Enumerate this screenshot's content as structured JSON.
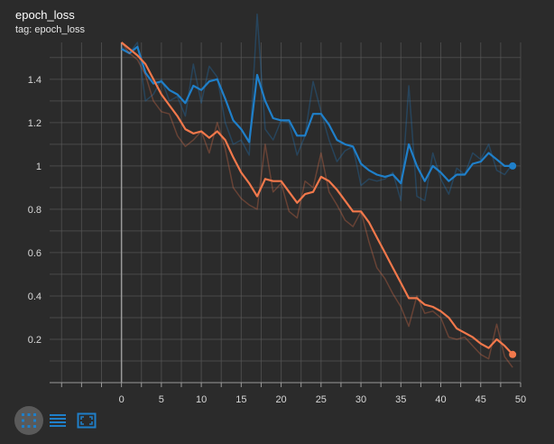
{
  "card": {
    "title": "epoch_loss",
    "subtitle": "tag: epoch_loss"
  },
  "toolbar": {
    "buttons": [
      {
        "name": "fit-domain",
        "icon": "fit-to-data-icon",
        "active": true
      },
      {
        "name": "toggle-y-log",
        "icon": "log-scale-icon",
        "active": false
      },
      {
        "name": "expand",
        "icon": "fullscreen-icon",
        "active": false
      }
    ]
  },
  "colors": {
    "background": "#2b2b2b",
    "grid": "#555555",
    "series_blue": "#1f7fc9",
    "series_orange": "#f2784b"
  },
  "chart_data": {
    "type": "line",
    "xlim": [
      -9,
      50
    ],
    "ylim": [
      0.0,
      1.57
    ],
    "x_ticks": [
      "0",
      "5",
      "10",
      "15",
      "20",
      "25",
      "30",
      "35",
      "40",
      "45",
      "50"
    ],
    "y_ticks": [
      "0.2",
      "0.4",
      "0.6",
      "0.8",
      "1",
      "1.2",
      "1.4"
    ],
    "series": [
      {
        "color": "#1f7fc9",
        "x": [
          0,
          1,
          2,
          3,
          4,
          5,
          6,
          7,
          8,
          9,
          10,
          11,
          12,
          13,
          14,
          15,
          16,
          17,
          18,
          19,
          20,
          21,
          22,
          23,
          24,
          25,
          26,
          27,
          28,
          29,
          30,
          31,
          32,
          33,
          34,
          35,
          36,
          37,
          38,
          39,
          40,
          41,
          42,
          43,
          44,
          45,
          46,
          47,
          48,
          49
        ],
        "y": [
          1.54,
          1.52,
          1.55,
          1.43,
          1.38,
          1.39,
          1.35,
          1.33,
          1.29,
          1.37,
          1.35,
          1.39,
          1.4,
          1.31,
          1.21,
          1.17,
          1.11,
          1.42,
          1.3,
          1.22,
          1.21,
          1.21,
          1.14,
          1.14,
          1.24,
          1.24,
          1.19,
          1.12,
          1.1,
          1.09,
          1.01,
          0.98,
          0.96,
          0.95,
          0.96,
          0.92,
          1.1,
          1.0,
          0.93,
          1.0,
          0.97,
          0.93,
          0.96,
          0.96,
          1.01,
          1.02,
          1.06,
          1.03,
          1.0,
          1.0
        ],
        "raw": [
          1.55,
          1.52,
          1.57,
          1.3,
          1.33,
          1.4,
          1.3,
          1.32,
          1.23,
          1.47,
          1.29,
          1.46,
          1.41,
          1.2,
          1.1,
          1.12,
          1.05,
          1.7,
          1.17,
          1.12,
          1.21,
          1.2,
          1.05,
          1.14,
          1.39,
          1.25,
          1.12,
          1.02,
          1.07,
          1.09,
          0.91,
          0.94,
          0.93,
          0.94,
          0.97,
          0.84,
          1.37,
          0.86,
          0.84,
          1.06,
          0.94,
          0.87,
          0.99,
          0.96,
          1.06,
          1.03,
          1.1,
          0.98,
          0.96,
          1.01
        ]
      },
      {
        "color": "#f2784b",
        "x": [
          0,
          1,
          2,
          3,
          4,
          5,
          6,
          7,
          8,
          9,
          10,
          11,
          12,
          13,
          14,
          15,
          16,
          17,
          18,
          19,
          20,
          21,
          22,
          23,
          24,
          25,
          26,
          27,
          28,
          29,
          30,
          31,
          32,
          33,
          34,
          35,
          36,
          37,
          38,
          39,
          40,
          41,
          42,
          43,
          44,
          45,
          46,
          47,
          48,
          49
        ],
        "y": [
          1.57,
          1.54,
          1.51,
          1.47,
          1.4,
          1.33,
          1.28,
          1.23,
          1.17,
          1.15,
          1.16,
          1.13,
          1.16,
          1.12,
          1.04,
          0.97,
          0.92,
          0.86,
          0.94,
          0.93,
          0.93,
          0.88,
          0.83,
          0.87,
          0.88,
          0.95,
          0.93,
          0.89,
          0.84,
          0.79,
          0.79,
          0.74,
          0.67,
          0.6,
          0.53,
          0.46,
          0.39,
          0.39,
          0.36,
          0.35,
          0.33,
          0.3,
          0.25,
          0.23,
          0.21,
          0.18,
          0.16,
          0.2,
          0.17,
          0.13
        ],
        "raw": [
          1.57,
          1.52,
          1.49,
          1.42,
          1.3,
          1.25,
          1.24,
          1.14,
          1.09,
          1.12,
          1.16,
          1.06,
          1.2,
          1.08,
          0.9,
          0.85,
          0.82,
          0.8,
          1.1,
          0.88,
          0.92,
          0.79,
          0.76,
          0.93,
          0.9,
          1.06,
          0.88,
          0.82,
          0.75,
          0.72,
          0.79,
          0.65,
          0.53,
          0.48,
          0.41,
          0.35,
          0.26,
          0.4,
          0.32,
          0.33,
          0.3,
          0.21,
          0.2,
          0.21,
          0.17,
          0.13,
          0.11,
          0.27,
          0.12,
          0.07
        ]
      }
    ]
  }
}
